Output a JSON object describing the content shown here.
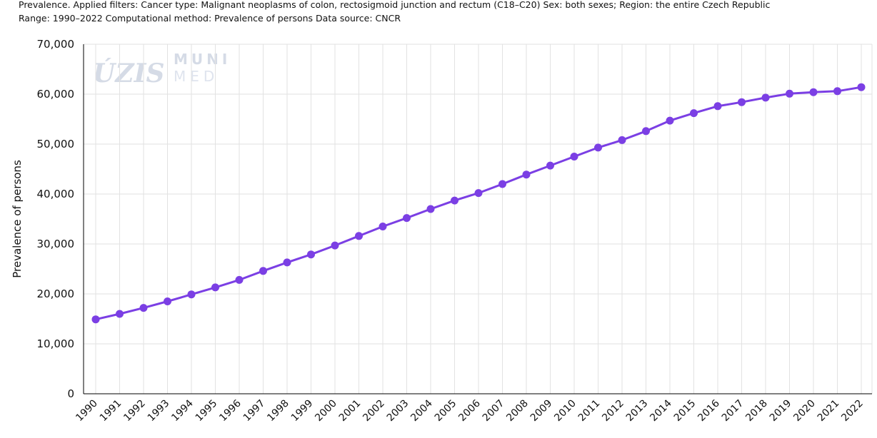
{
  "filters_line1": "Prevalence. Applied filters: Cancer type: Malignant neoplasms of colon, rectosigmoid junction and rectum (C18–C20) Sex: both sexes; Region: the entire Czech Republic",
  "filters_line2": "Range: 1990–2022 Computational method: Prevalence of persons Data source: CNCR",
  "watermark": {
    "uzis": "ÚZIS",
    "muni": "MUNI",
    "med": "MED"
  },
  "colors": {
    "series": "#7b3fe4",
    "grid": "#e2e2e2",
    "axis": "#000000"
  },
  "chart_data": {
    "type": "line",
    "xlabel": "",
    "ylabel": "Prevalence of persons",
    "ylim": [
      0,
      70000
    ],
    "y_ticks": [
      0,
      10000,
      20000,
      30000,
      40000,
      50000,
      60000,
      70000
    ],
    "y_tick_labels": [
      "0",
      "10,000",
      "20,000",
      "30,000",
      "40,000",
      "50,000",
      "60,000",
      "70,000"
    ],
    "grid": true,
    "legend": "none",
    "categories": [
      "1990",
      "1991",
      "1992",
      "1993",
      "1994",
      "1995",
      "1996",
      "1997",
      "1998",
      "1999",
      "2000",
      "2001",
      "2002",
      "2003",
      "2004",
      "2005",
      "2006",
      "2007",
      "2008",
      "2009",
      "2010",
      "2011",
      "2012",
      "2013",
      "2014",
      "2015",
      "2016",
      "2017",
      "2018",
      "2019",
      "2020",
      "2021",
      "2022"
    ],
    "series": [
      {
        "values": [
          14900,
          16000,
          17200,
          18500,
          19900,
          21300,
          22800,
          24600,
          26300,
          27900,
          29700,
          31600,
          33500,
          35200,
          37000,
          38700,
          40200,
          42000,
          43900,
          45700,
          47500,
          49300,
          50800,
          52600,
          54700,
          56200,
          57600,
          58400,
          59300,
          60100,
          60400,
          60600,
          61400
        ]
      }
    ]
  }
}
